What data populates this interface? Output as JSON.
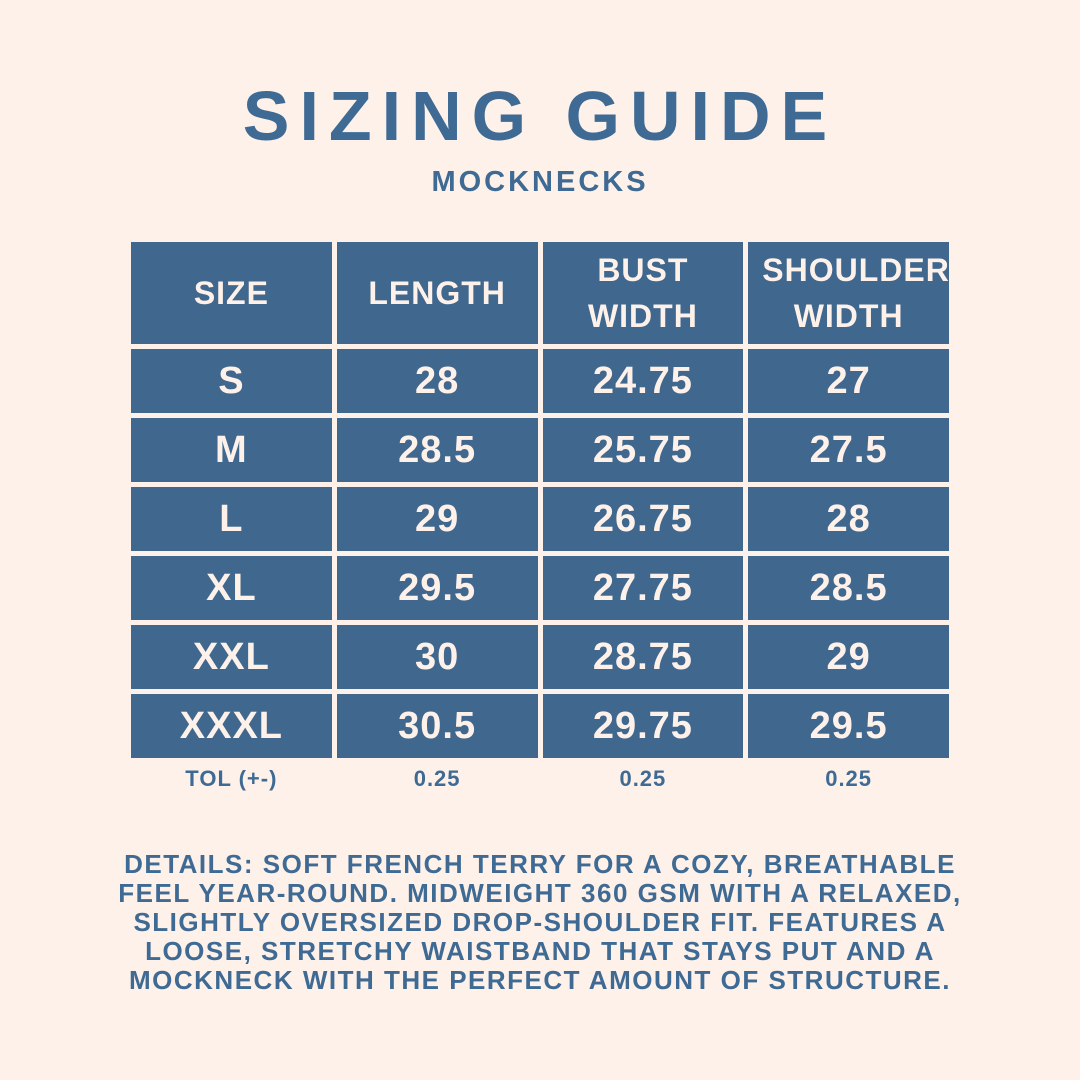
{
  "header": {
    "title": "SIZING GUIDE",
    "subtitle": "MOCKNECKS"
  },
  "table": {
    "columns": [
      "SIZE",
      "LENGTH",
      "BUST WIDTH",
      "SHOULDER WIDTH"
    ],
    "rows": [
      [
        "S",
        "28",
        "24.75",
        "27"
      ],
      [
        "M",
        "28.5",
        "25.75",
        "27.5"
      ],
      [
        "L",
        "29",
        "26.75",
        "28"
      ],
      [
        "XL",
        "29.5",
        "27.75",
        "28.5"
      ],
      [
        "XXL",
        "30",
        "28.75",
        "29"
      ],
      [
        "XXXL",
        "30.5",
        "29.75",
        "29.5"
      ]
    ],
    "tolerance": [
      "TOL (+-)",
      "0.25",
      "0.25",
      "0.25"
    ]
  },
  "details": "DETAILS: SOFT FRENCH TERRY FOR A COZY, BREATHABLE FEEL YEAR-ROUND. MIDWEIGHT 360 GSM WITH A RELAXED, SLIGHTLY OVERSIZED DROP-SHOULDER FIT. FEATURES A LOOSE, STRETCHY WAISTBAND THAT STAYS PUT AND A MOCKNECK WITH THE PERFECT AMOUNT OF STRUCTURE.",
  "colors": {
    "background": "#fdf1ea",
    "accent_blue": "#40678e",
    "cell_text": "#fdf1ea"
  }
}
